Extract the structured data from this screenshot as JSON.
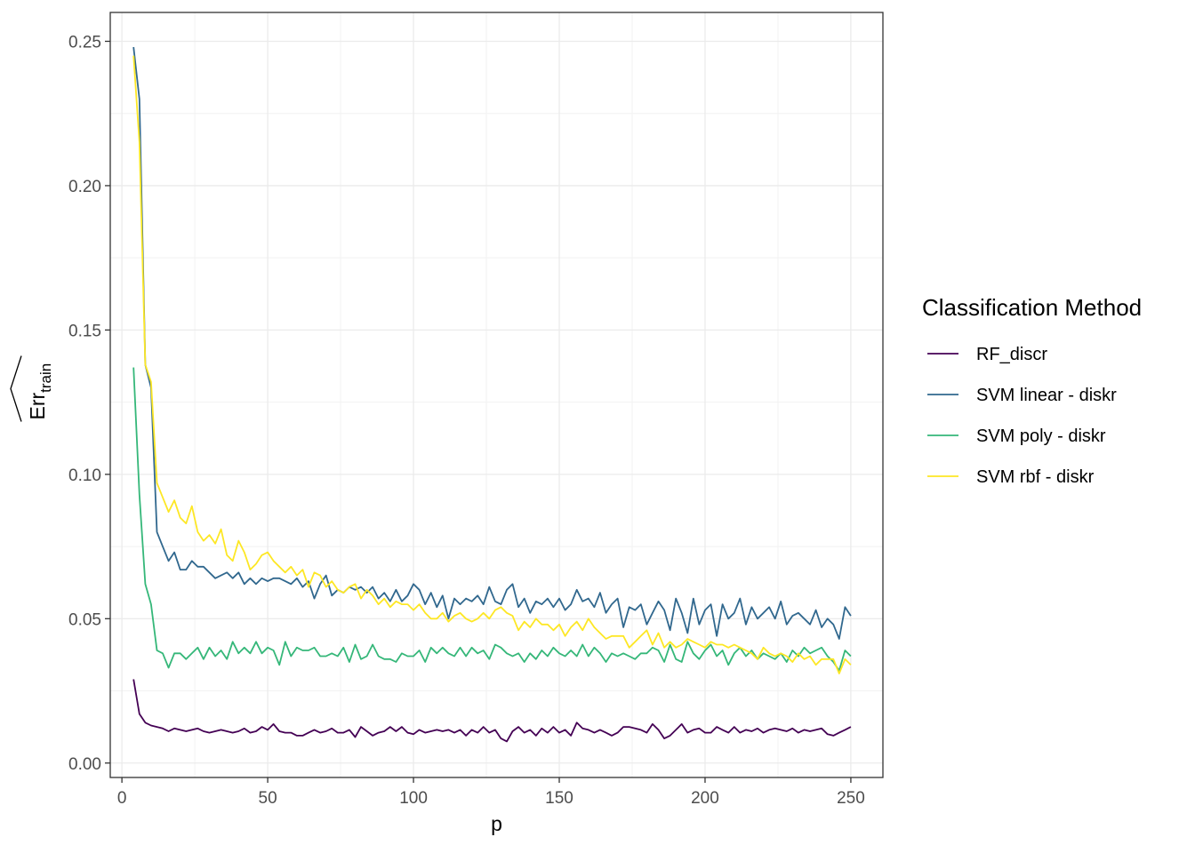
{
  "chart_data": {
    "type": "line",
    "xlabel": "p",
    "ylabel": {
      "base": "Err",
      "subscript": "train",
      "hat": true
    },
    "xlim": [
      -4,
      261
    ],
    "ylim": [
      -0.005,
      0.26
    ],
    "x_ticks": [
      0,
      50,
      100,
      150,
      200,
      250
    ],
    "y_ticks": [
      0.0,
      0.05,
      0.1,
      0.15,
      0.2,
      0.25
    ],
    "x_tick_labels": [
      "0",
      "50",
      "100",
      "150",
      "200",
      "250"
    ],
    "y_tick_labels": [
      "0.00",
      "0.05",
      "0.10",
      "0.15",
      "0.20",
      "0.25"
    ],
    "grid": true,
    "legend": {
      "title": "Classification Method",
      "position": "right"
    },
    "x": [
      4,
      6,
      8,
      10,
      12,
      14,
      16,
      18,
      20,
      22,
      24,
      26,
      28,
      30,
      32,
      34,
      36,
      38,
      40,
      42,
      44,
      46,
      48,
      50,
      52,
      54,
      56,
      58,
      60,
      62,
      64,
      66,
      68,
      70,
      72,
      74,
      76,
      78,
      80,
      82,
      84,
      86,
      88,
      90,
      92,
      94,
      96,
      98,
      100,
      102,
      104,
      106,
      108,
      110,
      112,
      114,
      116,
      118,
      120,
      122,
      124,
      126,
      128,
      130,
      132,
      134,
      136,
      138,
      140,
      142,
      144,
      146,
      148,
      150,
      152,
      154,
      156,
      158,
      160,
      162,
      164,
      166,
      168,
      170,
      172,
      174,
      176,
      178,
      180,
      182,
      184,
      186,
      188,
      190,
      192,
      194,
      196,
      198,
      200,
      202,
      204,
      206,
      208,
      210,
      212,
      214,
      216,
      218,
      220,
      222,
      224,
      226,
      228,
      230,
      232,
      234,
      236,
      238,
      240,
      242,
      244,
      246,
      248,
      250
    ],
    "series": [
      {
        "name": "RF_discr",
        "color": "#440154",
        "values": [
          0.029,
          0.017,
          0.014,
          0.013,
          0.0125,
          0.012,
          0.011,
          0.012,
          0.0115,
          0.011,
          0.0115,
          0.012,
          0.011,
          0.0105,
          0.011,
          0.0115,
          0.011,
          0.0105,
          0.011,
          0.012,
          0.0105,
          0.011,
          0.0125,
          0.0115,
          0.0135,
          0.011,
          0.0105,
          0.0105,
          0.0095,
          0.0095,
          0.0105,
          0.0115,
          0.0105,
          0.011,
          0.012,
          0.0105,
          0.0105,
          0.0115,
          0.009,
          0.0125,
          0.011,
          0.0095,
          0.0105,
          0.011,
          0.0125,
          0.011,
          0.0125,
          0.0105,
          0.01,
          0.0115,
          0.0105,
          0.011,
          0.0115,
          0.011,
          0.0115,
          0.0105,
          0.0115,
          0.0095,
          0.0115,
          0.0105,
          0.0125,
          0.0105,
          0.0115,
          0.0085,
          0.0075,
          0.011,
          0.0125,
          0.0105,
          0.0115,
          0.0095,
          0.012,
          0.0105,
          0.0125,
          0.0105,
          0.0115,
          0.0095,
          0.014,
          0.012,
          0.0115,
          0.0105,
          0.0115,
          0.0105,
          0.0095,
          0.0105,
          0.0125,
          0.0125,
          0.012,
          0.0115,
          0.0105,
          0.0135,
          0.0115,
          0.0085,
          0.0095,
          0.0115,
          0.0135,
          0.0105,
          0.0115,
          0.012,
          0.0105,
          0.0105,
          0.0125,
          0.0115,
          0.0105,
          0.0125,
          0.0105,
          0.0115,
          0.011,
          0.012,
          0.0105,
          0.0115,
          0.012,
          0.0115,
          0.011,
          0.012,
          0.0105,
          0.0115,
          0.011,
          0.0115,
          0.012,
          0.01,
          0.0095,
          0.0105,
          0.0115,
          0.0125
        ]
      },
      {
        "name": "SVM linear - diskr",
        "color": "#31688e",
        "values": [
          0.248,
          0.23,
          0.138,
          0.13,
          0.08,
          0.075,
          0.07,
          0.073,
          0.067,
          0.067,
          0.07,
          0.068,
          0.068,
          0.066,
          0.064,
          0.065,
          0.066,
          0.064,
          0.066,
          0.062,
          0.064,
          0.062,
          0.064,
          0.063,
          0.064,
          0.064,
          0.063,
          0.062,
          0.064,
          0.061,
          0.063,
          0.057,
          0.062,
          0.065,
          0.058,
          0.06,
          0.059,
          0.061,
          0.06,
          0.061,
          0.059,
          0.061,
          0.057,
          0.059,
          0.056,
          0.06,
          0.056,
          0.058,
          0.062,
          0.06,
          0.055,
          0.059,
          0.054,
          0.058,
          0.05,
          0.057,
          0.055,
          0.057,
          0.056,
          0.058,
          0.055,
          0.061,
          0.056,
          0.055,
          0.06,
          0.062,
          0.054,
          0.057,
          0.052,
          0.056,
          0.055,
          0.057,
          0.054,
          0.057,
          0.053,
          0.055,
          0.06,
          0.056,
          0.057,
          0.054,
          0.059,
          0.052,
          0.055,
          0.057,
          0.047,
          0.054,
          0.053,
          0.055,
          0.048,
          0.052,
          0.056,
          0.053,
          0.046,
          0.057,
          0.052,
          0.045,
          0.057,
          0.048,
          0.053,
          0.055,
          0.044,
          0.055,
          0.05,
          0.052,
          0.057,
          0.048,
          0.054,
          0.05,
          0.052,
          0.054,
          0.05,
          0.056,
          0.048,
          0.051,
          0.052,
          0.05,
          0.048,
          0.053,
          0.047,
          0.05,
          0.048,
          0.043,
          0.054,
          0.051
        ]
      },
      {
        "name": "SVM poly - diskr",
        "color": "#35b779",
        "values": [
          0.137,
          0.093,
          0.062,
          0.055,
          0.039,
          0.038,
          0.033,
          0.038,
          0.038,
          0.036,
          0.038,
          0.04,
          0.036,
          0.04,
          0.037,
          0.039,
          0.036,
          0.042,
          0.038,
          0.04,
          0.038,
          0.042,
          0.038,
          0.04,
          0.039,
          0.034,
          0.042,
          0.037,
          0.04,
          0.039,
          0.039,
          0.04,
          0.037,
          0.037,
          0.038,
          0.037,
          0.04,
          0.035,
          0.041,
          0.036,
          0.037,
          0.041,
          0.037,
          0.036,
          0.036,
          0.035,
          0.038,
          0.037,
          0.037,
          0.039,
          0.035,
          0.04,
          0.038,
          0.04,
          0.038,
          0.037,
          0.04,
          0.037,
          0.04,
          0.038,
          0.039,
          0.036,
          0.041,
          0.04,
          0.038,
          0.037,
          0.038,
          0.035,
          0.038,
          0.036,
          0.039,
          0.037,
          0.04,
          0.038,
          0.037,
          0.039,
          0.037,
          0.041,
          0.037,
          0.04,
          0.038,
          0.035,
          0.038,
          0.037,
          0.038,
          0.037,
          0.036,
          0.038,
          0.038,
          0.04,
          0.039,
          0.035,
          0.041,
          0.036,
          0.035,
          0.042,
          0.038,
          0.036,
          0.039,
          0.041,
          0.037,
          0.039,
          0.034,
          0.038,
          0.04,
          0.037,
          0.039,
          0.036,
          0.038,
          0.037,
          0.036,
          0.038,
          0.035,
          0.039,
          0.037,
          0.04,
          0.038,
          0.039,
          0.04,
          0.037,
          0.035,
          0.032,
          0.039,
          0.037
        ]
      },
      {
        "name": "SVM rbf - diskr",
        "color": "#fde725",
        "values": [
          0.245,
          0.215,
          0.138,
          0.132,
          0.097,
          0.092,
          0.087,
          0.091,
          0.085,
          0.083,
          0.089,
          0.08,
          0.077,
          0.079,
          0.076,
          0.081,
          0.072,
          0.07,
          0.077,
          0.073,
          0.067,
          0.069,
          0.072,
          0.073,
          0.07,
          0.068,
          0.066,
          0.068,
          0.065,
          0.067,
          0.061,
          0.066,
          0.065,
          0.061,
          0.063,
          0.06,
          0.059,
          0.061,
          0.062,
          0.057,
          0.06,
          0.058,
          0.055,
          0.057,
          0.054,
          0.056,
          0.055,
          0.055,
          0.053,
          0.055,
          0.052,
          0.05,
          0.05,
          0.052,
          0.049,
          0.051,
          0.052,
          0.05,
          0.049,
          0.05,
          0.052,
          0.05,
          0.053,
          0.054,
          0.052,
          0.051,
          0.046,
          0.049,
          0.047,
          0.05,
          0.048,
          0.048,
          0.046,
          0.048,
          0.044,
          0.047,
          0.049,
          0.046,
          0.05,
          0.047,
          0.045,
          0.043,
          0.044,
          0.044,
          0.044,
          0.04,
          0.042,
          0.044,
          0.046,
          0.041,
          0.045,
          0.04,
          0.042,
          0.04,
          0.041,
          0.043,
          0.042,
          0.041,
          0.04,
          0.042,
          0.041,
          0.041,
          0.04,
          0.041,
          0.04,
          0.039,
          0.038,
          0.036,
          0.04,
          0.038,
          0.037,
          0.038,
          0.037,
          0.035,
          0.038,
          0.036,
          0.037,
          0.034,
          0.036,
          0.036,
          0.036,
          0.031,
          0.036,
          0.034
        ]
      }
    ]
  }
}
